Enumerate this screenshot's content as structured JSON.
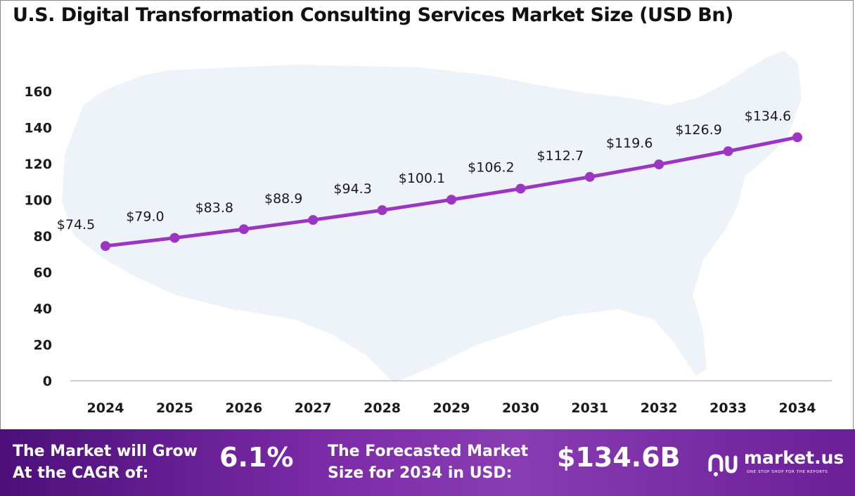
{
  "title": "U.S. Digital Transformation Consulting Services Market Size (USD Bn)",
  "chart_data": {
    "type": "line",
    "categories": [
      "2024",
      "2025",
      "2026",
      "2027",
      "2028",
      "2029",
      "2030",
      "2031",
      "2032",
      "2033",
      "2034"
    ],
    "values": [
      74.5,
      79.0,
      83.8,
      88.9,
      94.3,
      100.1,
      106.2,
      112.7,
      119.6,
      126.9,
      134.6
    ],
    "data_labels": [
      "$74.5",
      "$79.0",
      "$83.8",
      "$88.9",
      "$94.3",
      "$100.1",
      "$106.2",
      "$112.7",
      "$119.6",
      "$126.9",
      "$134.6"
    ],
    "y_ticks": [
      "0",
      "20",
      "40",
      "60",
      "80",
      "100",
      "120",
      "140",
      "160"
    ],
    "ylim": [
      0,
      160
    ],
    "grid": false,
    "line_color": "#9b36c3",
    "background_map": "united-states-map"
  },
  "footer": {
    "cagr_label_line1": "The Market will Grow",
    "cagr_label_line2": "At the CAGR of:",
    "cagr_value": "6.1%",
    "forecast_label_line1": "The Forecasted Market",
    "forecast_label_line2": "Size for 2034 in USD:",
    "forecast_value": "$134.6B",
    "logo_text": "market.us",
    "logo_tagline": "ONE STOP SHOP FOR THE REPORTS"
  }
}
